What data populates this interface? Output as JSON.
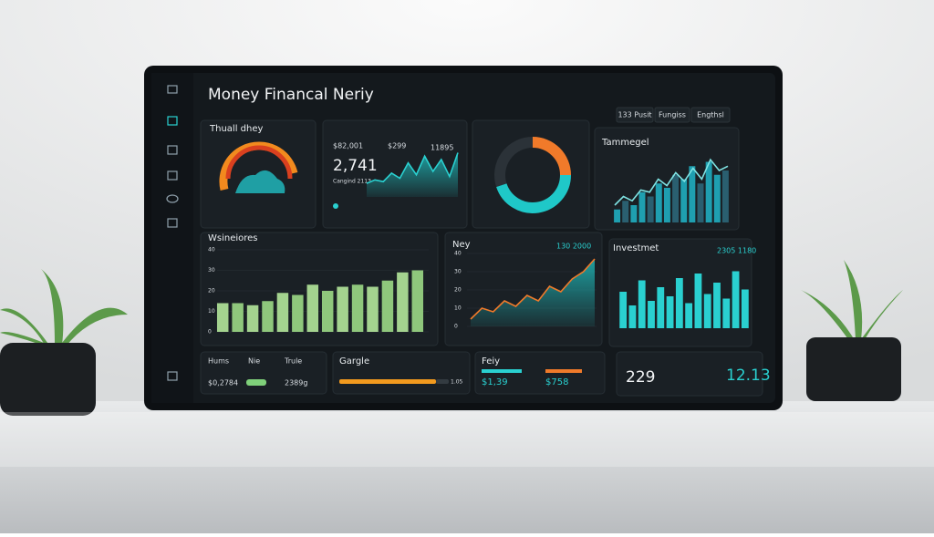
{
  "header": {
    "title": "Money Financal Neriy",
    "tabs": [
      "133 Pusit",
      "Fungiss",
      "Engthsl"
    ]
  },
  "gauge": {
    "title": "Thuall dhey"
  },
  "summary": {
    "stats": [
      "$82,001",
      "$299",
      "11895"
    ],
    "value": "2,741",
    "caption": "Cangind 2113",
    "line": [
      8,
      10,
      9,
      14,
      11,
      20,
      13,
      24,
      15,
      22,
      12,
      26
    ]
  },
  "donut": {
    "segments": [
      25,
      45,
      30
    ],
    "colors": [
      "#f07a2a",
      "#1fc8c8",
      "#2b3238"
    ]
  },
  "trend": {
    "title": "Tammegel",
    "bars": [
      6,
      10,
      8,
      14,
      12,
      18,
      16,
      22,
      20,
      26,
      18,
      28,
      22,
      24
    ],
    "line": [
      8,
      12,
      10,
      15,
      14,
      20,
      17,
      23,
      19,
      25,
      20,
      29,
      24,
      26
    ]
  },
  "weekly": {
    "title": "Wsineiores",
    "yticks": [
      0,
      10,
      20,
      30,
      40
    ],
    "bars": [
      14,
      14,
      13,
      15,
      19,
      18,
      23,
      20,
      22,
      23,
      22,
      25,
      29,
      30
    ]
  },
  "ney": {
    "title": "Ney",
    "badge": "130 2000",
    "yticks": [
      0,
      10,
      20,
      30,
      40
    ],
    "values": [
      4,
      10,
      8,
      14,
      11,
      17,
      14,
      22,
      19,
      26,
      30,
      37
    ]
  },
  "investment": {
    "title": "Investmet",
    "badge": "2305 1180",
    "bars": [
      16,
      10,
      21,
      12,
      18,
      14,
      22,
      11,
      24,
      15,
      20,
      13,
      25,
      17
    ]
  },
  "footer": {
    "left": {
      "labels": [
        "Hums",
        "Nie",
        "Trule"
      ],
      "values": [
        "$0,2784",
        "2389g"
      ]
    },
    "gargle": {
      "title": "Gargle",
      "value": "1.05"
    },
    "feiy": {
      "title": "Feiy",
      "values": [
        "$1,39",
        "$758"
      ]
    },
    "right": {
      "values": [
        "229",
        "12.13"
      ]
    }
  }
}
